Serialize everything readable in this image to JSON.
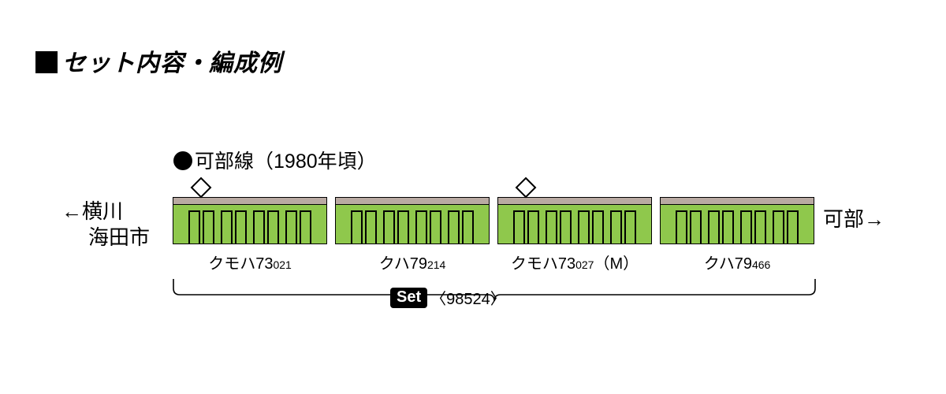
{
  "title": "セット内容・編成例",
  "line": {
    "name": "可部線",
    "era": "（1980年頃）"
  },
  "dest": {
    "left_arrow": "←",
    "left_line1": "横川",
    "left_line2": "海田市",
    "right_name": "可部",
    "right_arrow": "→"
  },
  "cars": [
    {
      "type": "クモハ73",
      "num": "021",
      "suffix": "",
      "has_panto": true,
      "panto_pos": "left",
      "doors": 4
    },
    {
      "type": "クハ79",
      "num": "214",
      "suffix": "",
      "has_panto": false,
      "panto_pos": "",
      "doors": 4
    },
    {
      "type": "クモハ73",
      "num": "027",
      "suffix": "（M）",
      "has_panto": true,
      "panto_pos": "left",
      "doors": 4
    },
    {
      "type": "クハ79",
      "num": "466",
      "suffix": "",
      "has_panto": false,
      "panto_pos": "",
      "doors": 4
    }
  ],
  "set": {
    "label": "Set",
    "product": "〈98524〉"
  },
  "style": {
    "roof_color": "#b9aaa2",
    "body_color": "#8fc84c",
    "door_color": "#8fc84c",
    "border_color": "#000000",
    "car_width": 196,
    "car_gap": 10,
    "car_height": 60
  }
}
